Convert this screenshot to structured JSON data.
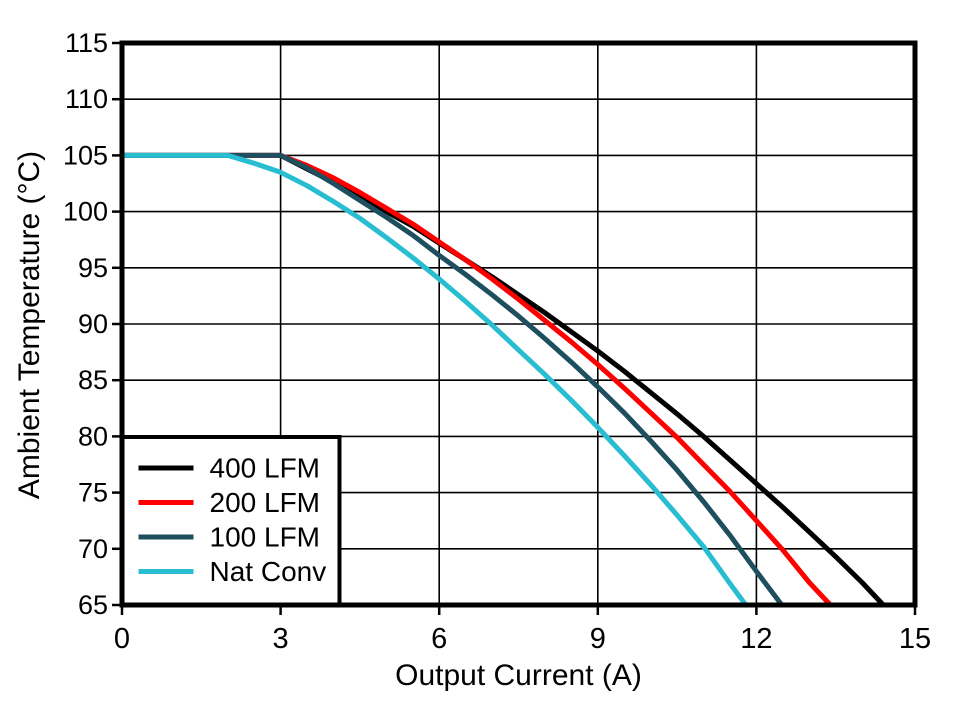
{
  "chart_data": {
    "type": "line",
    "title": "",
    "xlabel": "Output Current (A)",
    "ylabel": "Ambient Temperature (°C)",
    "xlim": [
      0,
      15
    ],
    "ylim": [
      65,
      115
    ],
    "xticks": [
      0,
      3,
      6,
      9,
      12,
      15
    ],
    "yticks": [
      65,
      70,
      75,
      80,
      85,
      90,
      95,
      100,
      105,
      110,
      115
    ],
    "grid": true,
    "legend_position": "bottom-left",
    "axis_color": "#000000",
    "grid_color": "#000000",
    "background_color": "#FFFFFF",
    "series": [
      {
        "name": "400 LFM",
        "color": "#000000",
        "points": [
          [
            0,
            105
          ],
          [
            2,
            105
          ],
          [
            3,
            105
          ],
          [
            3.5,
            103.8
          ],
          [
            4,
            102.6
          ],
          [
            4.5,
            101.4
          ],
          [
            5,
            100.0
          ],
          [
            5.5,
            98.7
          ],
          [
            6,
            97.2
          ],
          [
            6.5,
            95.7
          ],
          [
            7,
            94.2
          ],
          [
            7.5,
            92.6
          ],
          [
            8,
            91.0
          ],
          [
            8.5,
            89.3
          ],
          [
            9,
            87.6
          ],
          [
            9.5,
            85.8
          ],
          [
            10,
            83.9
          ],
          [
            10.5,
            82.0
          ],
          [
            11,
            80.0
          ],
          [
            11.5,
            77.9
          ],
          [
            12,
            75.8
          ],
          [
            12.5,
            73.7
          ],
          [
            13,
            71.5
          ],
          [
            13.5,
            69.3
          ],
          [
            14,
            67.0
          ],
          [
            14.4,
            65
          ]
        ]
      },
      {
        "name": "200 LFM",
        "color": "#FF0000",
        "points": [
          [
            0,
            105
          ],
          [
            2,
            105
          ],
          [
            3,
            105
          ],
          [
            3.5,
            104.1
          ],
          [
            4,
            103.0
          ],
          [
            4.5,
            101.7
          ],
          [
            5,
            100.3
          ],
          [
            5.5,
            98.9
          ],
          [
            6,
            97.3
          ],
          [
            6.5,
            95.7
          ],
          [
            7,
            94.0
          ],
          [
            7.5,
            92.2
          ],
          [
            8,
            90.3
          ],
          [
            8.5,
            88.4
          ],
          [
            9,
            86.4
          ],
          [
            9.5,
            84.3
          ],
          [
            10,
            82.1
          ],
          [
            10.5,
            79.9
          ],
          [
            11,
            77.5
          ],
          [
            11.5,
            75.1
          ],
          [
            12,
            72.5
          ],
          [
            12.5,
            69.9
          ],
          [
            13,
            67.0
          ],
          [
            13.4,
            65
          ]
        ]
      },
      {
        "name": "100 LFM",
        "color": "#1E4F5F",
        "points": [
          [
            0,
            105
          ],
          [
            2,
            105
          ],
          [
            3,
            105
          ],
          [
            3.5,
            103.9
          ],
          [
            4,
            102.5
          ],
          [
            4.5,
            101.0
          ],
          [
            5,
            99.5
          ],
          [
            5.5,
            97.9
          ],
          [
            6,
            96.1
          ],
          [
            6.5,
            94.4
          ],
          [
            7,
            92.6
          ],
          [
            7.5,
            90.7
          ],
          [
            8,
            88.7
          ],
          [
            8.5,
            86.6
          ],
          [
            9,
            84.4
          ],
          [
            9.5,
            82.1
          ],
          [
            10,
            79.6
          ],
          [
            10.5,
            77.0
          ],
          [
            11,
            74.2
          ],
          [
            11.5,
            71.2
          ],
          [
            12,
            68.0
          ],
          [
            12.48,
            65
          ]
        ]
      },
      {
        "name": "Nat Conv",
        "color": "#29BDD1",
        "points": [
          [
            0,
            105
          ],
          [
            2,
            105
          ],
          [
            2.5,
            104.3
          ],
          [
            3,
            103.5
          ],
          [
            3.5,
            102.3
          ],
          [
            4,
            100.9
          ],
          [
            4.5,
            99.4
          ],
          [
            5,
            97.7
          ],
          [
            5.5,
            95.9
          ],
          [
            6,
            94.0
          ],
          [
            6.5,
            92.0
          ],
          [
            7,
            89.9
          ],
          [
            7.5,
            87.7
          ],
          [
            8,
            85.5
          ],
          [
            8.5,
            83.2
          ],
          [
            9,
            80.8
          ],
          [
            9.5,
            78.3
          ],
          [
            10,
            75.7
          ],
          [
            10.5,
            73.0
          ],
          [
            11,
            70.2
          ],
          [
            11.5,
            66.9
          ],
          [
            11.8,
            65
          ]
        ]
      }
    ]
  }
}
